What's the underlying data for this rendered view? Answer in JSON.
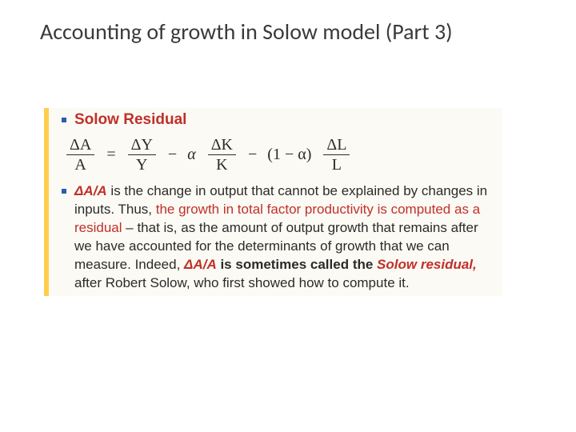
{
  "slide": {
    "title": "Accounting of growth in Solow model (Part 3)",
    "title_fontsize": 28,
    "title_color": "#3a3a3a",
    "background_color": "#ffffff"
  },
  "content": {
    "accent_bar_color": "#ffce4a",
    "content_bg": "#fcfaf4",
    "bullet_color": "#2a5db0",
    "heading": "Solow Residual",
    "heading_color": "#c0302a",
    "equation": {
      "font": "Times New Roman",
      "fontsize": 20,
      "text_color": "#2b2b2b",
      "terms": {
        "f1_num": "ΔA",
        "f1_den": "A",
        "eq": "=",
        "f2_num": "ΔY",
        "f2_den": "Y",
        "minus1": "−",
        "alpha": "α",
        "f3_num": "ΔK",
        "f3_den": "K",
        "minus2": "−",
        "one_minus_alpha": "(1 − α)",
        "f4_num": "ΔL",
        "f4_den": "L"
      }
    },
    "paragraph": {
      "font": "Arial",
      "fontsize": 17,
      "text_color": "#2b2b2b",
      "red_color": "#c0302a",
      "p_lead_red": "ΔA/A",
      "p_seg1": " is the change in output that cannot be explained by changes in inputs. Thus, ",
      "p_red_mid": "the growth in total factor productivity is computed as a residual",
      "p_seg2": " – that is, as the amount of output growth that remains after we have accounted for the determinants of growth that we can measure. Indeed, ",
      "p_bold1": "ΔA/A",
      "p_bold2": " is sometimes called the ",
      "p_bold_ital_red": "Solow residual,",
      "p_seg3": " after Robert Solow, who first showed how to compute it."
    }
  }
}
